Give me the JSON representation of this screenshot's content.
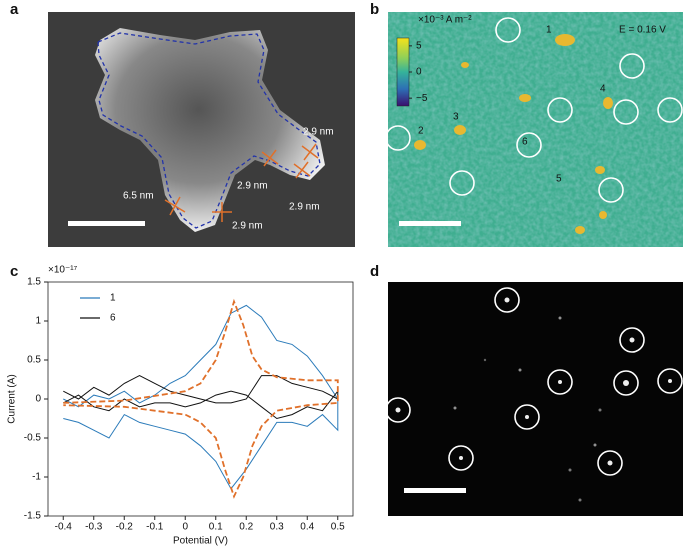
{
  "panels": {
    "a": {
      "label": "a",
      "annotations": [
        "2.9 nm",
        "2.9 nm",
        "2.9 nm",
        "6.5 nm",
        "2.9 nm"
      ]
    },
    "b": {
      "label": "b",
      "potential": "E = 0.16 V",
      "colorbar": {
        "label": "×10⁻³ A m⁻²",
        "lim": [
          -6.5,
          6.5
        ],
        "ticks": [
          5,
          0,
          {
            "value": -5,
            "label": "−5"
          }
        ]
      },
      "particles": [
        "1",
        "2",
        "3",
        "4",
        "5",
        "6"
      ]
    },
    "c": {
      "label": "c"
    },
    "d": {
      "label": "d"
    }
  },
  "chart_data": {
    "type": "line",
    "xlabel": "Potential (V)",
    "ylabel": "Current (A)",
    "y_scale_label": "×10⁻¹⁷",
    "xlim": [
      -0.45,
      0.55
    ],
    "ylim": [
      -1.5,
      1.5
    ],
    "xticks": [
      -0.4,
      -0.3,
      -0.2,
      -0.1,
      0,
      0.1,
      0.2,
      0.3,
      0.4,
      0.5
    ],
    "yticks": [
      -1.5,
      -1,
      -0.5,
      0,
      0.5,
      1,
      1.5
    ],
    "series": [
      {
        "name": "1",
        "color": "#2b7bba",
        "x": [
          -0.4,
          -0.35,
          -0.3,
          -0.25,
          -0.2,
          -0.15,
          -0.1,
          -0.05,
          0,
          0.05,
          0.1,
          0.15,
          0.2,
          0.25,
          0.3,
          0.35,
          0.4,
          0.45,
          0.5,
          0.5,
          0.45,
          0.4,
          0.35,
          0.3,
          0.25,
          0.2,
          0.15,
          0.1,
          0.05,
          0,
          -0.05,
          -0.1,
          -0.15,
          -0.2,
          -0.25,
          -0.3,
          -0.35,
          -0.4
        ],
        "values": [
          0.0,
          -0.1,
          0.05,
          0.0,
          0.1,
          -0.05,
          0.05,
          0.2,
          0.3,
          0.5,
          0.7,
          1.1,
          1.2,
          1.05,
          0.75,
          0.7,
          0.55,
          0.3,
          0.0,
          -0.4,
          -0.2,
          -0.35,
          -0.3,
          -0.3,
          -0.6,
          -0.9,
          -1.15,
          -0.8,
          -0.6,
          -0.45,
          -0.4,
          -0.35,
          -0.3,
          -0.2,
          -0.5,
          -0.4,
          -0.3,
          -0.25
        ]
      },
      {
        "name": "6",
        "color": "#111111",
        "x": [
          -0.4,
          -0.35,
          -0.3,
          -0.25,
          -0.2,
          -0.15,
          -0.1,
          -0.05,
          0,
          0.05,
          0.1,
          0.15,
          0.2,
          0.25,
          0.3,
          0.35,
          0.4,
          0.45,
          0.5,
          0.5,
          0.45,
          0.4,
          0.35,
          0.3,
          0.25,
          0.2,
          0.15,
          0.1,
          0.05,
          0,
          -0.05,
          -0.1,
          -0.15,
          -0.2,
          -0.25,
          -0.3,
          -0.35,
          -0.4
        ],
        "values": [
          0.1,
          0.0,
          0.15,
          0.05,
          0.2,
          0.3,
          0.2,
          0.1,
          0.05,
          0.0,
          -0.05,
          -0.05,
          0.0,
          0.3,
          0.3,
          0.2,
          0.15,
          0.1,
          0.0,
          0.1,
          -0.15,
          -0.1,
          -0.2,
          -0.25,
          -0.1,
          0.05,
          0.1,
          0.05,
          -0.05,
          -0.1,
          -0.05,
          -0.05,
          -0.1,
          0.0,
          -0.15,
          -0.1,
          0.05,
          -0.05
        ]
      },
      {
        "color": "#e0702a",
        "x": [
          -0.4,
          -0.2,
          0,
          0.05,
          0.1,
          0.13,
          0.16,
          0.19,
          0.22,
          0.25,
          0.3,
          0.4,
          0.5,
          0.5,
          0.4,
          0.3,
          0.25,
          0.22,
          0.19,
          0.16,
          0.13,
          0.1,
          0.05,
          0,
          -0.2,
          -0.4
        ],
        "values": [
          -0.05,
          -0.02,
          0.1,
          0.2,
          0.5,
          0.85,
          1.25,
          0.95,
          0.55,
          0.38,
          0.28,
          0.24,
          0.24,
          -0.05,
          -0.08,
          -0.15,
          -0.35,
          -0.6,
          -1.0,
          -1.25,
          -0.9,
          -0.5,
          -0.3,
          -0.2,
          -0.1,
          -0.08
        ]
      }
    ]
  }
}
